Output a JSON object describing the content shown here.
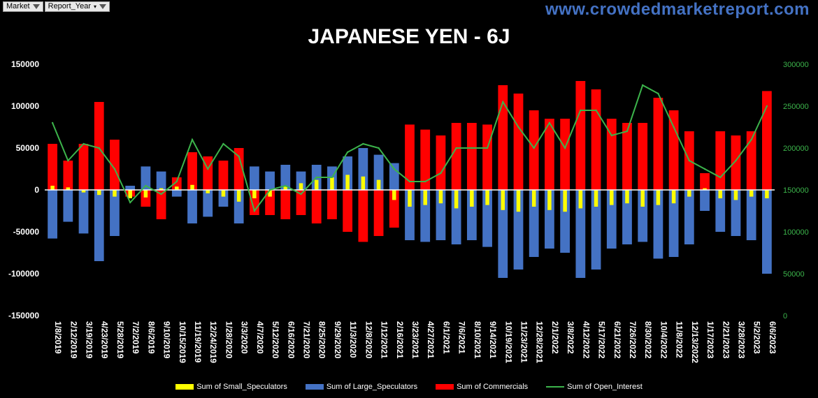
{
  "filters": {
    "market_label": "Market",
    "report_year_label": "Report_Year"
  },
  "website": "www.crowdedmarketreport.com",
  "chart_data": {
    "type": "bar",
    "title": "JAPANESE YEN - 6J",
    "x_labels": [
      "1/8/2019",
      "2/12/2019",
      "3/19/2019",
      "4/23/2019",
      "5/28/2019",
      "7/2/2019",
      "8/6/2019",
      "9/10/2019",
      "10/15/2019",
      "11/19/2019",
      "12/24/2019",
      "1/28/2020",
      "3/3/2020",
      "4/7/2020",
      "5/12/2020",
      "6/16/2020",
      "7/21/2020",
      "8/25/2020",
      "9/29/2020",
      "11/3/2020",
      "12/8/2020",
      "1/12/2021",
      "2/16/2021",
      "3/23/2021",
      "4/27/2021",
      "6/1/2021",
      "7/6/2021",
      "8/10/2021",
      "9/14/2021",
      "10/19/2021",
      "11/23/2021",
      "12/28/2021",
      "2/1/2022",
      "3/8/2022",
      "4/12/2022",
      "5/17/2022",
      "6/21/2022",
      "7/26/2022",
      "8/30/2022",
      "10/4/2022",
      "11/8/2022",
      "12/13/2022",
      "1/17/2023",
      "2/21/2023",
      "3/28/2023",
      "5/2/2023",
      "6/6/2023"
    ],
    "left_axis": {
      "min": -150000,
      "max": 150000,
      "step": 50000,
      "ticks": [
        "150000",
        "100000",
        "50000",
        "0",
        "-50000",
        "-100000",
        "-150000"
      ]
    },
    "right_axis": {
      "min": 0,
      "max": 300000,
      "step": 50000,
      "ticks": [
        "300000",
        "250000",
        "200000",
        "150000",
        "100000",
        "50000",
        "0"
      ]
    },
    "legend_position": "bottom",
    "series": [
      {
        "name": "Sum of Small_Speculators",
        "color": "#ffff00",
        "type": "bar",
        "axis": "left",
        "values": [
          5000,
          3000,
          -3000,
          -6000,
          -8000,
          -10000,
          -9000,
          2000,
          4000,
          6000,
          -4000,
          -8000,
          -14000,
          -10000,
          -8000,
          4000,
          8000,
          12000,
          15000,
          18000,
          16000,
          12000,
          -12000,
          -20000,
          -18000,
          -16000,
          -22000,
          -20000,
          -18000,
          -24000,
          -26000,
          -20000,
          -24000,
          -26000,
          -22000,
          -20000,
          -18000,
          -16000,
          -20000,
          -18000,
          -16000,
          -8000,
          2000,
          -10000,
          -12000,
          -8000,
          -10000
        ]
      },
      {
        "name": "Sum of Large_Speculators",
        "color": "#4472c4",
        "type": "bar",
        "axis": "left",
        "values": [
          -58000,
          -38000,
          -52000,
          -85000,
          -55000,
          5000,
          28000,
          22000,
          -8000,
          -40000,
          -32000,
          -20000,
          -40000,
          28000,
          22000,
          30000,
          22000,
          30000,
          28000,
          40000,
          50000,
          42000,
          32000,
          -60000,
          -62000,
          -60000,
          -65000,
          -60000,
          -68000,
          -105000,
          -95000,
          -80000,
          -70000,
          -75000,
          -105000,
          -95000,
          -70000,
          -65000,
          -62000,
          -82000,
          -80000,
          -65000,
          -25000,
          -50000,
          -55000,
          -60000,
          -100000
        ]
      },
      {
        "name": "Sum of Commercials",
        "color": "#ff0000",
        "type": "bar",
        "axis": "left",
        "values": [
          55000,
          35000,
          55000,
          105000,
          60000,
          -8000,
          -20000,
          -35000,
          15000,
          45000,
          40000,
          35000,
          50000,
          -30000,
          -30000,
          -35000,
          -30000,
          -40000,
          -35000,
          -50000,
          -62000,
          -55000,
          -45000,
          78000,
          72000,
          65000,
          80000,
          80000,
          78000,
          125000,
          115000,
          95000,
          85000,
          85000,
          130000,
          120000,
          85000,
          80000,
          80000,
          110000,
          95000,
          70000,
          20000,
          70000,
          65000,
          70000,
          118000
        ]
      },
      {
        "name": "Sum of Open_Interest",
        "color": "#3cb44b",
        "type": "line",
        "axis": "right",
        "values": [
          230000,
          185000,
          205000,
          200000,
          175000,
          135000,
          155000,
          145000,
          160000,
          210000,
          175000,
          205000,
          190000,
          125000,
          150000,
          155000,
          145000,
          165000,
          165000,
          195000,
          205000,
          200000,
          175000,
          160000,
          160000,
          170000,
          200000,
          200000,
          200000,
          255000,
          225000,
          200000,
          230000,
          200000,
          245000,
          245000,
          215000,
          220000,
          275000,
          265000,
          225000,
          185000,
          175000,
          165000,
          185000,
          210000,
          250000
        ]
      }
    ]
  }
}
